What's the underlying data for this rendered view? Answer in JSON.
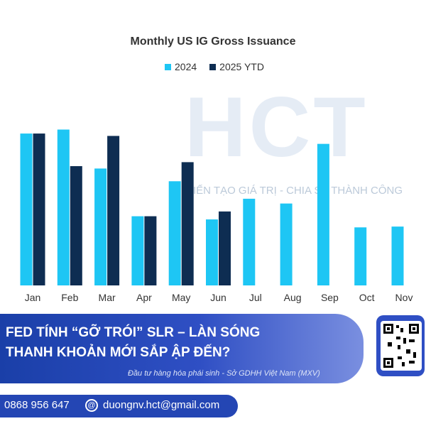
{
  "chart_data": {
    "type": "bar",
    "title": "Monthly US IG Gross Issuance",
    "categories": [
      "Jan",
      "Feb",
      "Mar",
      "Apr",
      "May",
      "Jun",
      "Jul",
      "Aug",
      "Sep",
      "Oct",
      "Nov"
    ],
    "series": [
      {
        "name": "2024",
        "color": "#1ec6f4",
        "values": [
          191,
          196,
          147,
          87,
          131,
          83,
          109,
          103,
          178,
          73,
          74
        ]
      },
      {
        "name": "2025 YTD",
        "color": "#0e2d52",
        "values": [
          191,
          150,
          188,
          87,
          155,
          93,
          null,
          null,
          null,
          null,
          null
        ]
      }
    ],
    "ylim": [
      0,
      250
    ],
    "grid": false,
    "legend_position": "top-center"
  },
  "watermark": {
    "logo_text": "HCT",
    "tagline": "KIẾN TẠO GIÁ TRỊ - CHIA SẺ THÀNH CÔNG"
  },
  "banner": {
    "headline_line1": "FED TÍNH “GỠ TRÓI” SLR – LÀN SÓNG",
    "headline_line2": "THANH KHOẢN MỚI SẮP ẬP ĐẾN?",
    "source": "Đầu tư hàng hóa phái sinh - Sở GDHH Việt Nam (MXV)"
  },
  "contact": {
    "phone": "0868 956 647",
    "email": "duongnv.hct@gmail.com",
    "email_icon": "mail-icon"
  },
  "colors": {
    "banner": "#2f4fc4",
    "bar_2024": "#1ec6f4",
    "bar_2025": "#0e2d52"
  }
}
